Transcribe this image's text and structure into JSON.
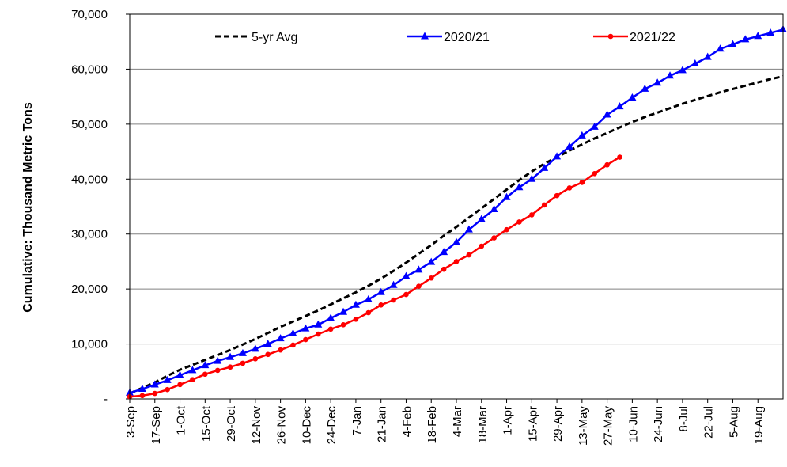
{
  "chart_data": {
    "type": "line",
    "title": "",
    "xlabel": "",
    "ylabel": "Cumulative:  Thousand Metric Tons",
    "ylim": [
      0,
      70000
    ],
    "y_ticks": [
      "-",
      "10,000",
      "20,000",
      "30,000",
      "40,000",
      "50,000",
      "60,000",
      "70,000"
    ],
    "y_tick_values": [
      0,
      10000,
      20000,
      30000,
      40000,
      50000,
      60000,
      70000
    ],
    "x_tick_labels": [
      "3-Sep",
      "17-Sep",
      "1-Oct",
      "15-Oct",
      "29-Oct",
      "12-Nov",
      "26-Nov",
      "10-Dec",
      "24-Dec",
      "7-Jan",
      "21-Jan",
      "4-Feb",
      "18-Feb",
      "4-Mar",
      "18-Mar",
      "1-Apr",
      "15-Apr",
      "29-Apr",
      "13-May",
      "27-May",
      "10-Jun",
      "24-Jun",
      "8-Jul",
      "22-Jul",
      "5-Aug",
      "19-Aug"
    ],
    "x_range_weeks": [
      0,
      52
    ],
    "grid": true,
    "legend_position": "top",
    "series": [
      {
        "name": "5-yr Avg",
        "color": "#000000",
        "style": "dashed",
        "marker": "none",
        "x": [
          0,
          1,
          2,
          3,
          4,
          5,
          6,
          7,
          8,
          9,
          10,
          11,
          12,
          13,
          14,
          15,
          16,
          17,
          18,
          19,
          20,
          21,
          22,
          23,
          24,
          25,
          26,
          27,
          28,
          29,
          30,
          31,
          32,
          33,
          34,
          35,
          36,
          37,
          38,
          39,
          40,
          41,
          42,
          43,
          44,
          45,
          46,
          47,
          48,
          49,
          50,
          51,
          52
        ],
        "values": [
          1000,
          2000,
          3000,
          4200,
          5300,
          6200,
          7100,
          8000,
          8900,
          9900,
          10900,
          12000,
          13100,
          14100,
          15100,
          16100,
          17200,
          18300,
          19400,
          20600,
          21900,
          23300,
          24800,
          26400,
          28000,
          29700,
          31300,
          33000,
          34700,
          36400,
          38100,
          39800,
          41400,
          42800,
          44000,
          45200,
          46300,
          47400,
          48400,
          49400,
          50400,
          51300,
          52100,
          52900,
          53700,
          54400,
          55100,
          55800,
          56400,
          57000,
          57600,
          58200,
          58700
        ]
      },
      {
        "name": "2020/21",
        "color": "#0000FF",
        "style": "solid",
        "marker": "triangle",
        "x": [
          0,
          1,
          2,
          3,
          4,
          5,
          6,
          7,
          8,
          9,
          10,
          11,
          12,
          13,
          14,
          15,
          16,
          17,
          18,
          19,
          20,
          21,
          22,
          23,
          24,
          25,
          26,
          27,
          28,
          29,
          30,
          31,
          32,
          33,
          34,
          35,
          36,
          37,
          38,
          39,
          40,
          41,
          42,
          43,
          44,
          45,
          46,
          47,
          48,
          49,
          50,
          51,
          52
        ],
        "values": [
          1100,
          1800,
          2600,
          3400,
          4300,
          5200,
          6100,
          6900,
          7600,
          8300,
          9100,
          10000,
          11000,
          11900,
          12800,
          13500,
          14700,
          15800,
          17100,
          18100,
          19400,
          20700,
          22300,
          23500,
          24900,
          26700,
          28500,
          30800,
          32700,
          34500,
          36700,
          38500,
          40000,
          42000,
          44100,
          45900,
          47900,
          49500,
          51700,
          53200,
          54800,
          56400,
          57500,
          58800,
          59800,
          61000,
          62200,
          63700,
          64500,
          65400,
          66000,
          66600,
          67200
        ]
      },
      {
        "name": "2021/22",
        "color": "#FF0000",
        "style": "solid",
        "marker": "circle",
        "x": [
          0,
          1,
          2,
          3,
          4,
          5,
          6,
          7,
          8,
          9,
          10,
          11,
          12,
          13,
          14,
          15,
          16,
          17,
          18,
          19,
          20,
          21,
          22,
          23,
          24,
          25,
          26,
          27,
          28,
          29,
          30,
          31,
          32,
          33,
          34,
          35,
          36,
          37,
          38,
          39
        ],
        "values": [
          400,
          600,
          1000,
          1700,
          2600,
          3500,
          4500,
          5200,
          5800,
          6500,
          7300,
          8100,
          8900,
          9800,
          10800,
          11800,
          12700,
          13500,
          14500,
          15700,
          17100,
          18000,
          19000,
          20500,
          22000,
          23600,
          25000,
          26200,
          27800,
          29300,
          30800,
          32200,
          33500,
          35300,
          37000,
          38400,
          39400,
          41000,
          42600,
          44000
        ]
      }
    ]
  }
}
